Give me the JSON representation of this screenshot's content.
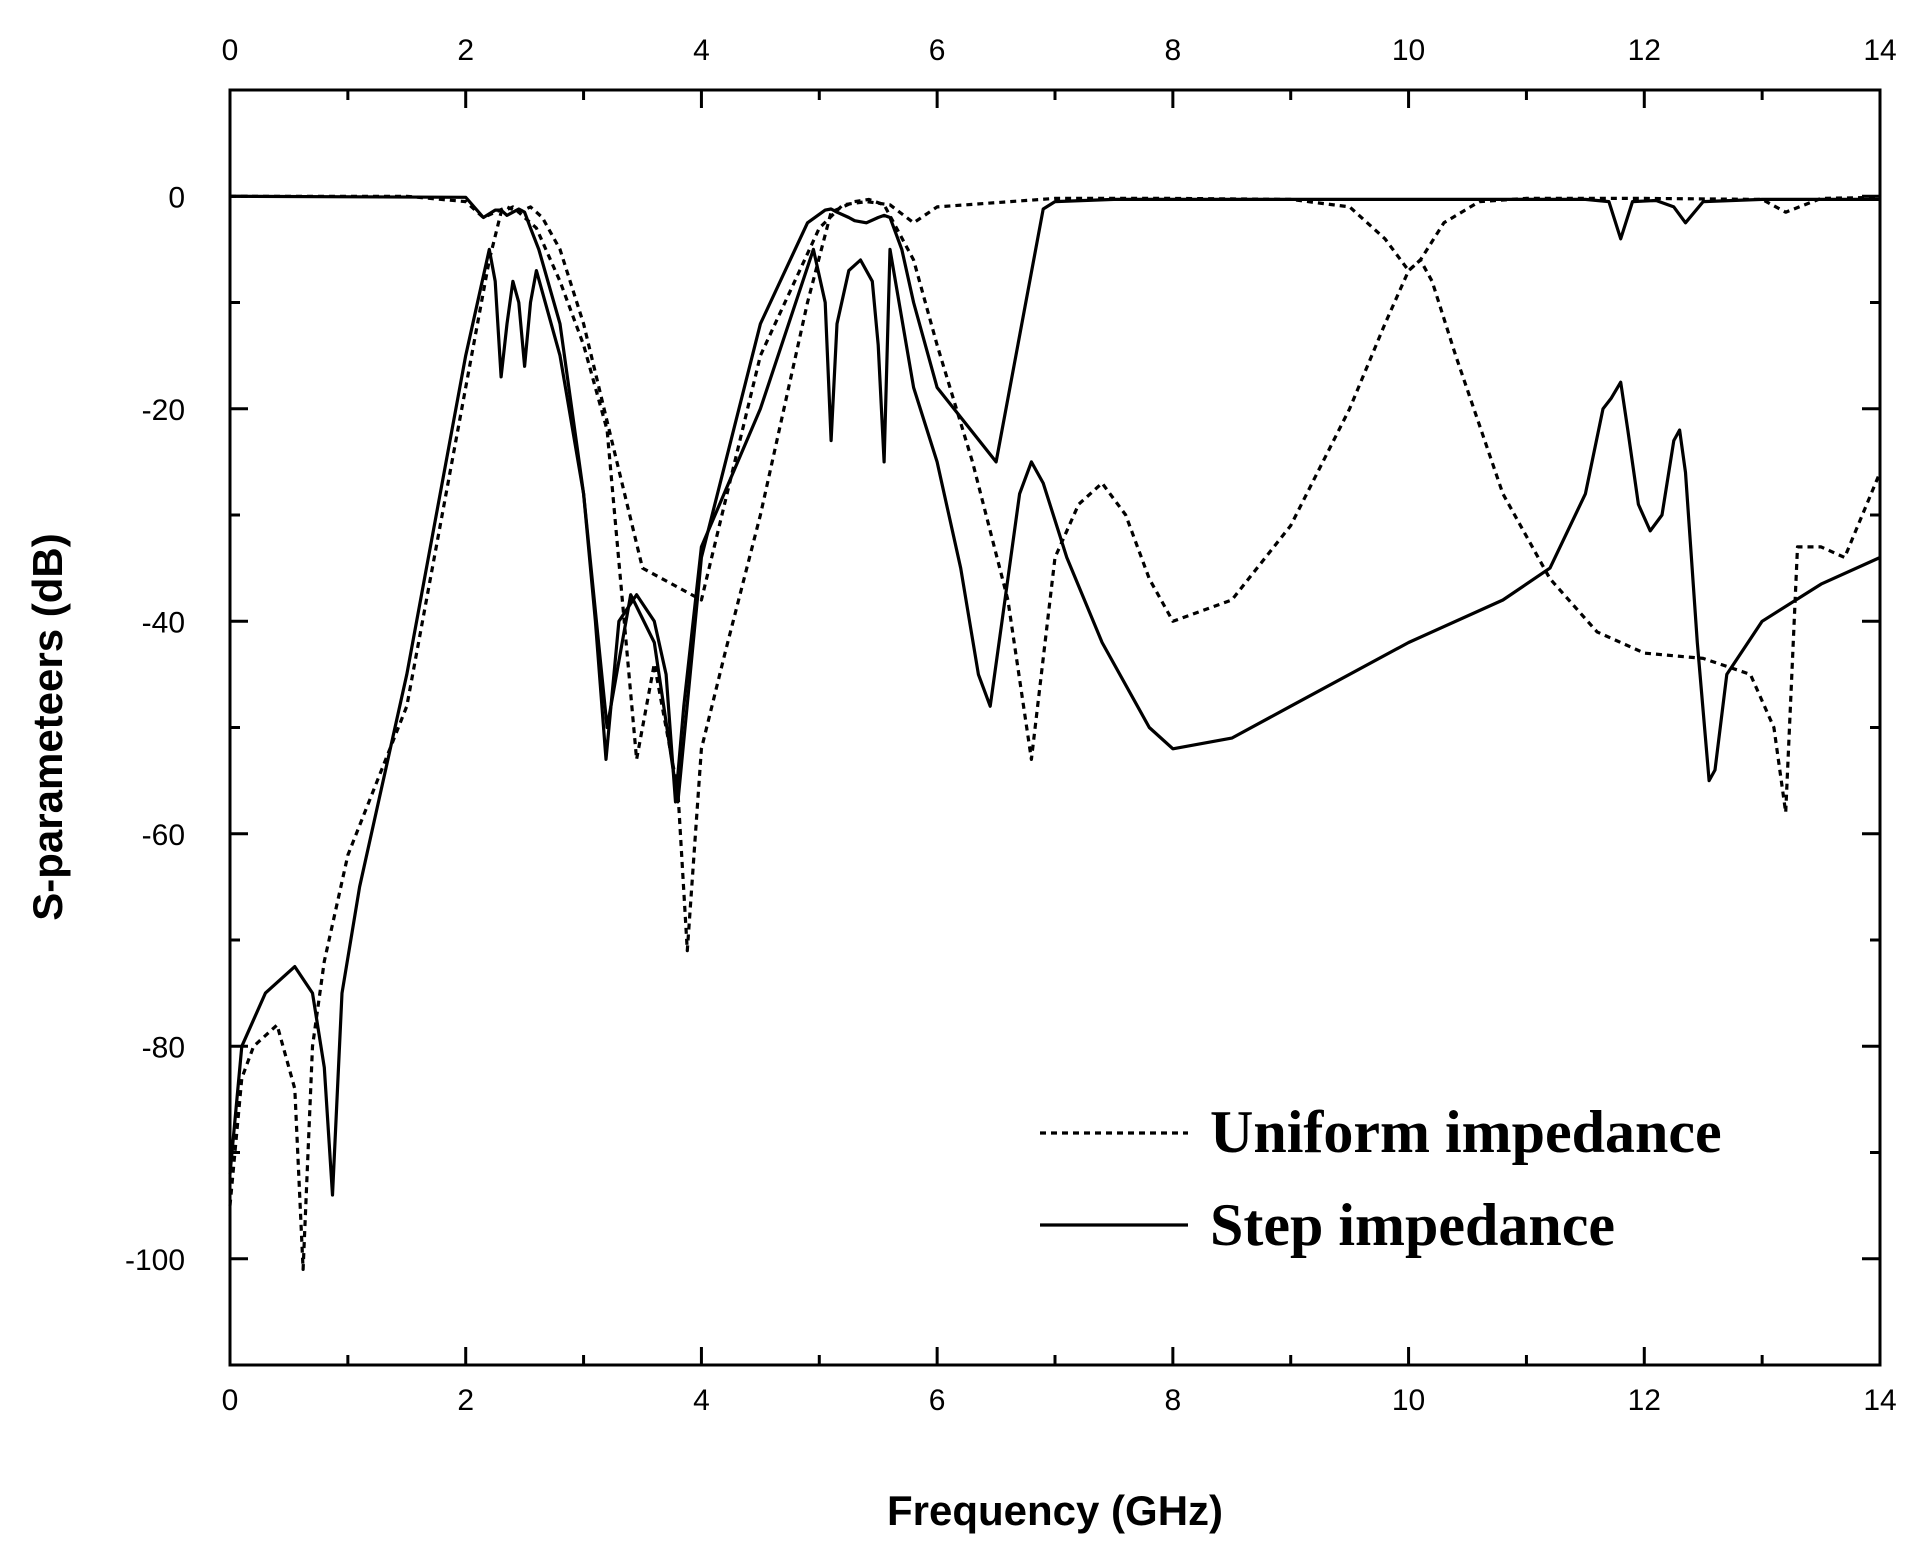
{
  "chart_data": {
    "type": "line",
    "title": "",
    "xlabel": "Frequency (GHz)",
    "ylabel": "S-parameteers (dB)",
    "xlim": [
      0,
      14
    ],
    "ylim": [
      -110,
      10
    ],
    "xticks": [
      0,
      2,
      4,
      6,
      8,
      10,
      12,
      14
    ],
    "xtick_labels": [
      "0",
      "2",
      "4",
      "6",
      "8",
      "10",
      "12",
      "14"
    ],
    "yticks": [
      0,
      -20,
      -40,
      -60,
      -80,
      -100
    ],
    "ytick_labels": [
      "0",
      "-20",
      "-40",
      "-60",
      "-80",
      "-100"
    ],
    "legend_position": "bottom-right",
    "series": [
      {
        "name": "Uniform impedance",
        "style": "dashed",
        "param": "S21",
        "x": [
          0,
          1.5,
          2.0,
          2.15,
          2.25,
          2.35,
          2.45,
          2.55,
          2.65,
          2.8,
          3.0,
          3.5,
          4.0,
          4.5,
          5.0,
          5.2,
          5.4,
          5.6,
          5.8,
          6.0,
          7.0,
          8.0,
          9.0,
          9.5,
          9.8,
          10.0,
          10.1,
          10.3,
          10.6,
          11.0,
          12.0,
          13.0,
          13.2,
          13.5,
          14.0
        ],
        "y": [
          0,
          0,
          -0.5,
          -2,
          -1.5,
          -1,
          -1.5,
          -1,
          -2,
          -5,
          -12,
          -35,
          -38,
          -15,
          -3,
          -0.8,
          -0.5,
          -0.8,
          -2.5,
          -1,
          -0.2,
          -0.2,
          -0.3,
          -1,
          -4,
          -7,
          -6,
          -2.5,
          -0.5,
          -0.2,
          -0.2,
          -0.3,
          -1.5,
          -0.2,
          -0.1
        ]
      },
      {
        "name": "Uniform impedance",
        "style": "dashed",
        "param": "S11",
        "x": [
          0,
          0.1,
          0.2,
          0.4,
          0.55,
          0.62,
          0.7,
          0.8,
          1.0,
          1.5,
          2.0,
          2.2,
          2.3,
          2.4,
          2.5,
          2.6,
          2.8,
          3.0,
          3.2,
          3.45,
          3.6,
          3.8,
          3.88,
          4.0,
          4.2,
          4.5,
          4.9,
          5.1,
          5.3,
          5.42,
          5.55,
          5.8,
          6.0,
          6.3,
          6.6,
          6.8,
          7.0,
          7.2,
          7.4,
          7.6,
          7.8,
          8.0,
          8.5,
          9.0,
          9.5,
          9.8,
          10.0,
          10.1,
          10.2,
          10.4,
          10.8,
          11.2,
          11.6,
          12.0,
          12.5,
          12.9,
          13.1,
          13.2,
          13.3,
          13.5,
          13.7,
          14.0
        ],
        "y": [
          -95,
          -83,
          -80,
          -78,
          -84,
          -101,
          -80,
          -72,
          -62,
          -48,
          -18,
          -6,
          -1.5,
          -1,
          -2,
          -3,
          -8,
          -14,
          -22,
          -53,
          -44,
          -56,
          -71,
          -52,
          -43,
          -30,
          -10,
          -1.5,
          -0.5,
          -0.3,
          -0.8,
          -6,
          -14,
          -25,
          -38,
          -53,
          -34,
          -29,
          -27,
          -30,
          -36,
          -40,
          -38,
          -31,
          -20,
          -12,
          -7,
          -6,
          -8,
          -15,
          -28,
          -36,
          -41,
          -43,
          -43.5,
          -45,
          -50,
          -58,
          -33,
          -33,
          -34,
          -26
        ]
      },
      {
        "name": "Step impedance",
        "style": "solid",
        "param": "S21",
        "x": [
          0,
          2.0,
          2.15,
          2.25,
          2.3,
          2.35,
          2.4,
          2.45,
          2.5,
          2.55,
          2.62,
          2.8,
          3.0,
          3.2,
          3.4,
          3.6,
          3.8,
          4.0,
          4.5,
          4.9,
          5.05,
          5.1,
          5.15,
          5.25,
          5.3,
          5.4,
          5.5,
          5.55,
          5.6,
          5.7,
          5.8,
          6.0,
          6.5,
          6.9,
          7.0,
          7.5,
          8.0,
          9.0,
          10.0,
          11.0,
          11.5,
          11.7,
          11.8,
          11.9,
          12.1,
          12.25,
          12.35,
          12.5,
          13.0,
          14.0
        ],
        "y": [
          0,
          -0.1,
          -2,
          -1.3,
          -1.3,
          -1.8,
          -1.5,
          -1.2,
          -1.5,
          -3,
          -5,
          -12,
          -28,
          -50,
          -37.5,
          -42,
          -57,
          -34,
          -12,
          -2.5,
          -1.3,
          -1.2,
          -1.5,
          -2,
          -2.3,
          -2.5,
          -2,
          -1.8,
          -2,
          -5,
          -10,
          -18,
          -25,
          -1.2,
          -0.5,
          -0.3,
          -0.3,
          -0.3,
          -0.3,
          -0.3,
          -0.3,
          -0.5,
          -4,
          -0.5,
          -0.4,
          -1,
          -2.5,
          -0.5,
          -0.3,
          -0.3
        ]
      },
      {
        "name": "Step impedance",
        "style": "solid",
        "param": "S11",
        "x": [
          0,
          0.1,
          0.3,
          0.55,
          0.7,
          0.8,
          0.87,
          0.95,
          1.1,
          1.5,
          2.0,
          2.2,
          2.25,
          2.3,
          2.35,
          2.4,
          2.45,
          2.5,
          2.55,
          2.6,
          2.8,
          3.0,
          3.1,
          3.19,
          3.3,
          3.45,
          3.6,
          3.7,
          3.78,
          3.85,
          4.0,
          4.5,
          4.95,
          5.05,
          5.1,
          5.15,
          5.25,
          5.35,
          5.45,
          5.5,
          5.55,
          5.6,
          5.8,
          6.0,
          6.2,
          6.35,
          6.45,
          6.55,
          6.7,
          6.8,
          6.9,
          7.1,
          7.4,
          7.8,
          8.0,
          8.5,
          9.0,
          10.0,
          10.8,
          11.2,
          11.5,
          11.65,
          11.72,
          11.8,
          11.86,
          11.95,
          12.05,
          12.15,
          12.25,
          12.3,
          12.35,
          12.45,
          12.55,
          12.6,
          12.7,
          13.0,
          13.5,
          14.0
        ],
        "y": [
          -92,
          -80,
          -75,
          -72.5,
          -75,
          -82,
          -94,
          -75,
          -65,
          -45,
          -15,
          -5,
          -8,
          -17,
          -12,
          -8,
          -10,
          -16,
          -10,
          -7,
          -15,
          -28,
          -40,
          -53,
          -40,
          -37.5,
          -40,
          -45,
          -57,
          -48,
          -33,
          -20,
          -5,
          -10,
          -23,
          -12,
          -7,
          -6,
          -8,
          -14,
          -25,
          -5,
          -18,
          -25,
          -35,
          -45,
          -48,
          -40,
          -28,
          -25,
          -27,
          -34,
          -42,
          -50,
          -52,
          -51,
          -48,
          -42,
          -38,
          -35,
          -28,
          -20,
          -19,
          -17.5,
          -22,
          -29,
          -31.5,
          -30,
          -23,
          -22,
          -26,
          -42,
          -55,
          -54,
          -45,
          -40,
          -36.5,
          -34
        ]
      }
    ]
  },
  "legend": {
    "items": [
      {
        "label": "Uniform impedance",
        "style": "dashed"
      },
      {
        "label": "Step impedance",
        "style": "solid"
      }
    ]
  }
}
